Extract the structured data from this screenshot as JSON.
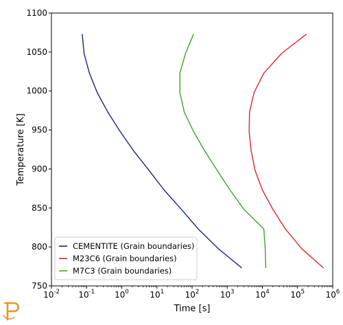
{
  "chart_data": {
    "type": "line",
    "xlabel": "Time [s]",
    "ylabel": "Temperature [K]",
    "x_scale": "log",
    "xlim": [
      0.01,
      1000000
    ],
    "ylim": [
      750,
      1100
    ],
    "x_ticks": [
      {
        "value": 0.01,
        "base": "10",
        "exp": "-2"
      },
      {
        "value": 0.1,
        "base": "10",
        "exp": "-1"
      },
      {
        "value": 1,
        "base": "10",
        "exp": "0"
      },
      {
        "value": 10,
        "base": "10",
        "exp": "1"
      },
      {
        "value": 100,
        "base": "10",
        "exp": "2"
      },
      {
        "value": 1000,
        "base": "10",
        "exp": "3"
      },
      {
        "value": 10000,
        "base": "10",
        "exp": "4"
      },
      {
        "value": 100000,
        "base": "10",
        "exp": "5"
      },
      {
        "value": 1000000,
        "base": "10",
        "exp": "6"
      }
    ],
    "y_ticks": [
      750,
      800,
      850,
      900,
      950,
      1000,
      1050,
      1100
    ],
    "grid": false,
    "legend_position": "bottom-left",
    "series": [
      {
        "name": "CEMENTITE (Grain boundaries)",
        "color": "#1a237e",
        "points": [
          [
            0.075,
            1073
          ],
          [
            0.085,
            1048
          ],
          [
            0.12,
            1023
          ],
          [
            0.2,
            998
          ],
          [
            0.4,
            973
          ],
          [
            0.9,
            948
          ],
          [
            2.2,
            923
          ],
          [
            6.0,
            898
          ],
          [
            16,
            873
          ],
          [
            50,
            848
          ],
          [
            150,
            823
          ],
          [
            550,
            798
          ],
          [
            2600,
            773
          ]
        ]
      },
      {
        "name": "M23C6 (Grain boundaries)",
        "color": "#e8202a",
        "points": [
          [
            180000,
            1073
          ],
          [
            35000,
            1048
          ],
          [
            11000,
            1023
          ],
          [
            5800,
            998
          ],
          [
            4300,
            973
          ],
          [
            4200,
            948
          ],
          [
            4800,
            923
          ],
          [
            6200,
            898
          ],
          [
            10000,
            873
          ],
          [
            20000,
            848
          ],
          [
            45000,
            823
          ],
          [
            130000,
            798
          ],
          [
            550000,
            773
          ]
        ]
      },
      {
        "name": "M7C3 (Grain boundaries)",
        "color": "#3aa627",
        "points": [
          [
            110,
            1073
          ],
          [
            65,
            1048
          ],
          [
            45,
            1023
          ],
          [
            45,
            998
          ],
          [
            60,
            973
          ],
          [
            110,
            948
          ],
          [
            230,
            923
          ],
          [
            520,
            898
          ],
          [
            1200,
            873
          ],
          [
            3000,
            848
          ],
          [
            11000,
            823
          ],
          [
            12000,
            798
          ],
          [
            12500,
            773
          ]
        ]
      }
    ]
  },
  "icons": {
    "logo": "thermo-calc-logo-icon",
    "logo_color": "#e8942a"
  }
}
